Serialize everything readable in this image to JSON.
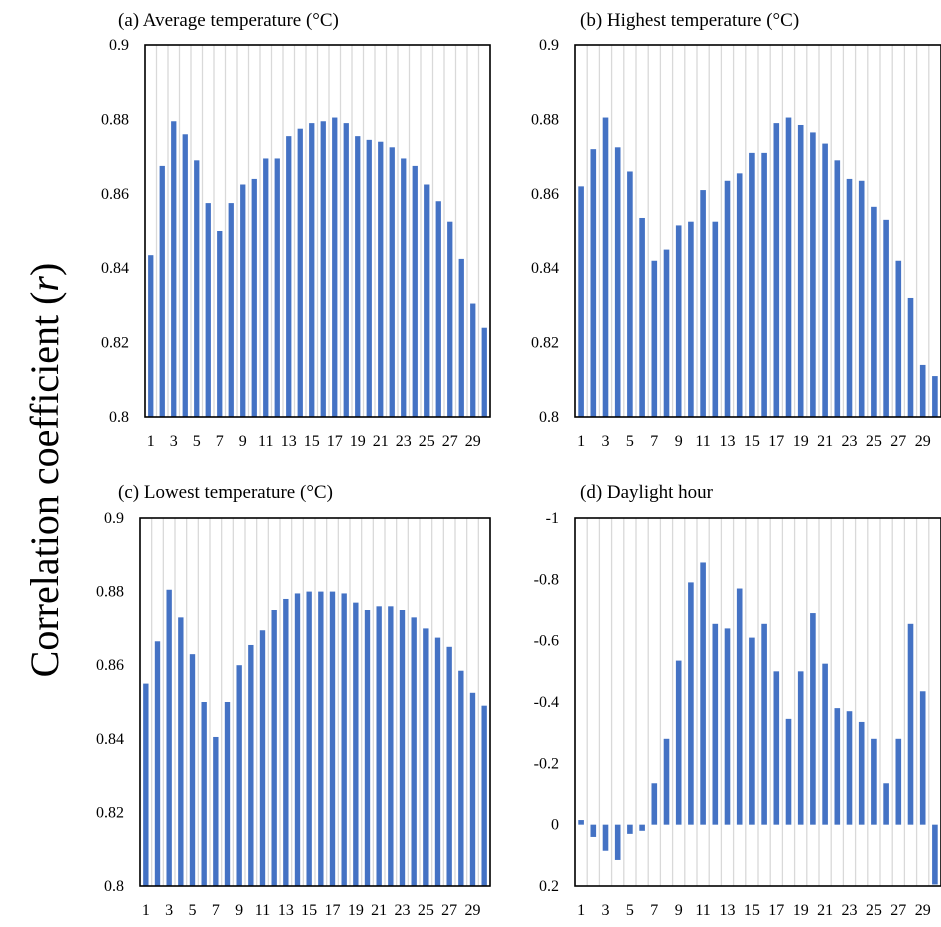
{
  "ylabel": {
    "main": "Correlation coefficient (",
    "var": "r",
    "close": ")"
  },
  "chart_data": [
    {
      "type": "bar",
      "title": "(a) Average temperature (°C)",
      "x": [
        1,
        2,
        3,
        4,
        5,
        6,
        7,
        8,
        9,
        10,
        11,
        12,
        13,
        14,
        15,
        16,
        17,
        18,
        19,
        20,
        21,
        22,
        23,
        24,
        25,
        26,
        27,
        28,
        29,
        30
      ],
      "x_tick_labels": [
        "1",
        "3",
        "5",
        "7",
        "9",
        "11",
        "13",
        "15",
        "17",
        "19",
        "21",
        "23",
        "25",
        "27",
        "29"
      ],
      "values": [
        0.8435,
        0.8675,
        0.8795,
        0.876,
        0.869,
        0.8575,
        0.85,
        0.8575,
        0.8625,
        0.864,
        0.8695,
        0.8695,
        0.8755,
        0.8775,
        0.879,
        0.8795,
        0.8805,
        0.879,
        0.8755,
        0.8745,
        0.874,
        0.8725,
        0.8695,
        0.8675,
        0.8625,
        0.858,
        0.8525,
        0.8425,
        0.8305,
        0.824
      ],
      "ylim": [
        0.8,
        0.9
      ],
      "y_tick_labels": [
        "0.8",
        "0.82",
        "0.84",
        "0.86",
        "0.88",
        "0.9"
      ],
      "color": "#4472C4",
      "grid": "vertical"
    },
    {
      "type": "bar",
      "title": "(b) Highest temperature (°C)",
      "x": [
        1,
        2,
        3,
        4,
        5,
        6,
        7,
        8,
        9,
        10,
        11,
        12,
        13,
        14,
        15,
        16,
        17,
        18,
        19,
        20,
        21,
        22,
        23,
        24,
        25,
        26,
        27,
        28,
        29,
        30
      ],
      "x_tick_labels": [
        "1",
        "3",
        "5",
        "7",
        "9",
        "11",
        "13",
        "15",
        "17",
        "19",
        "21",
        "23",
        "25",
        "27",
        "29"
      ],
      "values": [
        0.862,
        0.872,
        0.8805,
        0.8725,
        0.866,
        0.8535,
        0.842,
        0.845,
        0.8515,
        0.8525,
        0.861,
        0.8525,
        0.8635,
        0.8655,
        0.871,
        0.871,
        0.879,
        0.8805,
        0.8785,
        0.8765,
        0.8735,
        0.869,
        0.864,
        0.8635,
        0.8565,
        0.853,
        0.842,
        0.832,
        0.814,
        0.811
      ],
      "ylim": [
        0.8,
        0.9
      ],
      "y_tick_labels": [
        "0.8",
        "0.82",
        "0.84",
        "0.86",
        "0.88",
        "0.9"
      ],
      "color": "#4472C4",
      "grid": "vertical"
    },
    {
      "type": "bar",
      "title": "(c) Lowest temperature (°C)",
      "x": [
        1,
        2,
        3,
        4,
        5,
        6,
        7,
        8,
        9,
        10,
        11,
        12,
        13,
        14,
        15,
        16,
        17,
        18,
        19,
        20,
        21,
        22,
        23,
        24,
        25,
        26,
        27,
        28,
        29,
        30
      ],
      "x_tick_labels": [
        "1",
        "3",
        "5",
        "7",
        "9",
        "11",
        "13",
        "15",
        "17",
        "19",
        "21",
        "23",
        "25",
        "27",
        "29"
      ],
      "values": [
        0.855,
        0.8665,
        0.8805,
        0.873,
        0.863,
        0.85,
        0.8405,
        0.85,
        0.86,
        0.8655,
        0.8695,
        0.875,
        0.878,
        0.8795,
        0.88,
        0.88,
        0.88,
        0.8795,
        0.877,
        0.875,
        0.876,
        0.876,
        0.875,
        0.873,
        0.87,
        0.8675,
        0.865,
        0.8585,
        0.8525,
        0.849
      ],
      "ylim": [
        0.8,
        0.9
      ],
      "y_tick_labels": [
        "0.8",
        "0.82",
        "0.84",
        "0.86",
        "0.88",
        "0.9"
      ],
      "color": "#4472C4",
      "grid": "vertical"
    },
    {
      "type": "bar",
      "title": "(d) Daylight hour",
      "x": [
        1,
        2,
        3,
        4,
        5,
        6,
        7,
        8,
        9,
        10,
        11,
        12,
        13,
        14,
        15,
        16,
        17,
        18,
        19,
        20,
        21,
        22,
        23,
        24,
        25,
        26,
        27,
        28,
        29,
        30
      ],
      "x_tick_labels": [
        "1",
        "3",
        "5",
        "7",
        "9",
        "11",
        "13",
        "15",
        "17",
        "19",
        "21",
        "23",
        "25",
        "27",
        "29"
      ],
      "values": [
        -0.015,
        0.04,
        0.085,
        0.115,
        0.03,
        0.02,
        -0.135,
        -0.28,
        -0.535,
        -0.79,
        -0.855,
        -0.655,
        -0.64,
        -0.77,
        -0.61,
        -0.655,
        -0.5,
        -0.345,
        -0.5,
        -0.69,
        -0.525,
        -0.38,
        -0.37,
        -0.335,
        -0.28,
        -0.135,
        -0.28,
        -0.655,
        -0.435,
        0.195
      ],
      "ylim": [
        0.2,
        -1.0
      ],
      "y_axis_reversed": true,
      "y_tick_labels": [
        "0.2",
        "0",
        "-0.2",
        "-0.4",
        "-0.6",
        "-0.8",
        "-1"
      ],
      "color": "#4472C4",
      "grid": "vertical"
    }
  ]
}
